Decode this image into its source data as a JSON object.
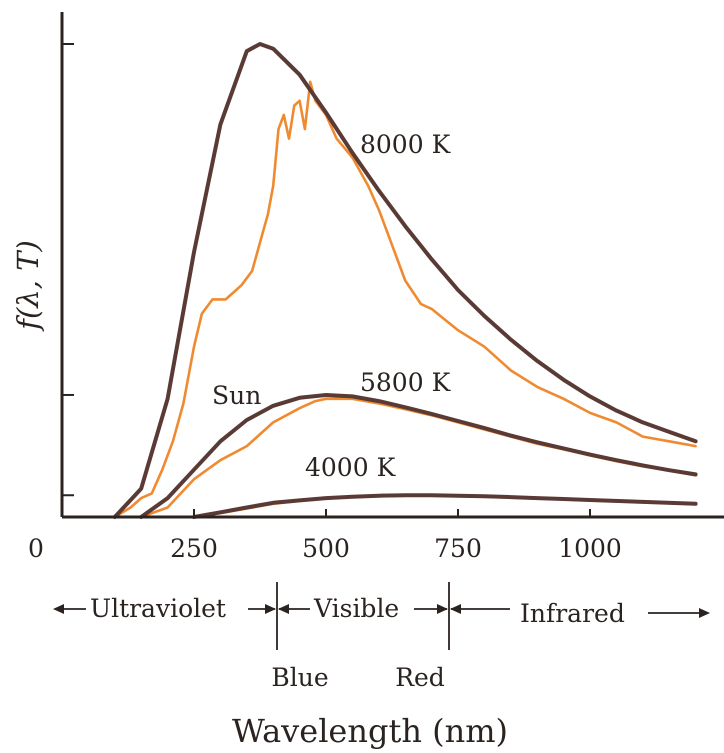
{
  "chart_data": {
    "type": "line",
    "title": "",
    "xlabel": "Wavelength (nm)",
    "ylabel": "f(λ, T)",
    "xlim": [
      0,
      1200
    ],
    "x_ticks": [
      0,
      250,
      500,
      750,
      1000
    ],
    "x_tick_labels": [
      "0",
      "250",
      "500",
      "750",
      "1000"
    ],
    "grid": false,
    "colors": {
      "blackbody": "#5a3a34",
      "sun": "#f08a30",
      "axis": "#2a2320"
    },
    "series": [
      {
        "name": "8000 K",
        "kind": "blackbody",
        "values": [
          [
            100,
            0.0
          ],
          [
            150,
            0.06
          ],
          [
            200,
            0.25
          ],
          [
            250,
            0.56
          ],
          [
            300,
            0.83
          ],
          [
            350,
            0.985
          ],
          [
            375,
            1.0
          ],
          [
            400,
            0.99
          ],
          [
            450,
            0.935
          ],
          [
            500,
            0.855
          ],
          [
            550,
            0.77
          ],
          [
            600,
            0.69
          ],
          [
            650,
            0.615
          ],
          [
            700,
            0.545
          ],
          [
            750,
            0.48
          ],
          [
            800,
            0.425
          ],
          [
            850,
            0.375
          ],
          [
            900,
            0.33
          ],
          [
            950,
            0.29
          ],
          [
            1000,
            0.255
          ],
          [
            1050,
            0.225
          ],
          [
            1100,
            0.2
          ],
          [
            1150,
            0.18
          ],
          [
            1200,
            0.16
          ]
        ]
      },
      {
        "name": "5800 K",
        "kind": "blackbody",
        "values": [
          [
            150,
            0.0
          ],
          [
            200,
            0.04
          ],
          [
            250,
            0.1
          ],
          [
            300,
            0.16
          ],
          [
            350,
            0.205
          ],
          [
            400,
            0.235
          ],
          [
            450,
            0.252
          ],
          [
            500,
            0.258
          ],
          [
            550,
            0.255
          ],
          [
            600,
            0.245
          ],
          [
            650,
            0.232
          ],
          [
            700,
            0.218
          ],
          [
            750,
            0.203
          ],
          [
            800,
            0.188
          ],
          [
            850,
            0.172
          ],
          [
            900,
            0.158
          ],
          [
            950,
            0.145
          ],
          [
            1000,
            0.132
          ],
          [
            1050,
            0.12
          ],
          [
            1100,
            0.109
          ],
          [
            1150,
            0.099
          ],
          [
            1200,
            0.09
          ]
        ]
      },
      {
        "name": "4000 K",
        "kind": "blackbody",
        "values": [
          [
            250,
            0.0
          ],
          [
            300,
            0.01
          ],
          [
            350,
            0.02
          ],
          [
            400,
            0.03
          ],
          [
            450,
            0.035
          ],
          [
            500,
            0.04
          ],
          [
            550,
            0.043
          ],
          [
            600,
            0.045
          ],
          [
            650,
            0.046
          ],
          [
            700,
            0.046
          ],
          [
            750,
            0.045
          ],
          [
            800,
            0.044
          ],
          [
            850,
            0.042
          ],
          [
            900,
            0.04
          ],
          [
            950,
            0.038
          ],
          [
            1000,
            0.036
          ],
          [
            1100,
            0.032
          ],
          [
            1200,
            0.028
          ]
        ]
      },
      {
        "name": "Sun",
        "kind": "measured",
        "values": [
          [
            100,
            0.0
          ],
          [
            130,
            0.02
          ],
          [
            150,
            0.04
          ],
          [
            170,
            0.05
          ],
          [
            190,
            0.1
          ],
          [
            210,
            0.16
          ],
          [
            230,
            0.24
          ],
          [
            250,
            0.36
          ],
          [
            265,
            0.43
          ],
          [
            285,
            0.46
          ],
          [
            310,
            0.46
          ],
          [
            340,
            0.49
          ],
          [
            360,
            0.52
          ],
          [
            380,
            0.6
          ],
          [
            390,
            0.64
          ],
          [
            400,
            0.7
          ],
          [
            410,
            0.82
          ],
          [
            420,
            0.85
          ],
          [
            430,
            0.8
          ],
          [
            440,
            0.87
          ],
          [
            450,
            0.88
          ],
          [
            460,
            0.82
          ],
          [
            470,
            0.92
          ],
          [
            480,
            0.88
          ],
          [
            500,
            0.85
          ],
          [
            520,
            0.8
          ],
          [
            550,
            0.76
          ],
          [
            580,
            0.7
          ],
          [
            600,
            0.65
          ],
          [
            620,
            0.59
          ],
          [
            650,
            0.5
          ],
          [
            680,
            0.45
          ],
          [
            700,
            0.44
          ],
          [
            750,
            0.395
          ],
          [
            800,
            0.36
          ],
          [
            850,
            0.31
          ],
          [
            900,
            0.275
          ],
          [
            950,
            0.25
          ],
          [
            1000,
            0.22
          ],
          [
            1050,
            0.2
          ],
          [
            1100,
            0.17
          ],
          [
            1150,
            0.16
          ],
          [
            1200,
            0.15
          ]
        ]
      },
      {
        "name": "Sun",
        "kind": "measured",
        "values": [
          [
            150,
            0.0
          ],
          [
            200,
            0.02
          ],
          [
            250,
            0.08
          ],
          [
            300,
            0.12
          ],
          [
            350,
            0.15
          ],
          [
            400,
            0.2
          ],
          [
            450,
            0.23
          ],
          [
            480,
            0.245
          ],
          [
            500,
            0.25
          ],
          [
            550,
            0.25
          ],
          [
            600,
            0.24
          ],
          [
            650,
            0.228
          ],
          [
            700,
            0.215
          ],
          [
            750,
            0.2
          ],
          [
            800,
            0.185
          ],
          [
            850,
            0.17
          ],
          [
            900,
            0.155
          ],
          [
            950,
            0.143
          ],
          [
            1000,
            0.13
          ],
          [
            1050,
            0.118
          ],
          [
            1100,
            0.107
          ],
          [
            1150,
            0.098
          ],
          [
            1200,
            0.088
          ]
        ]
      },
      {
        "name": "Sun",
        "kind": "measured",
        "values": [
          [
            250,
            0.0
          ],
          [
            300,
            0.008
          ],
          [
            350,
            0.018
          ],
          [
            400,
            0.028
          ],
          [
            450,
            0.034
          ],
          [
            500,
            0.039
          ],
          [
            550,
            0.042
          ],
          [
            600,
            0.044
          ],
          [
            650,
            0.045
          ],
          [
            700,
            0.045
          ],
          [
            750,
            0.044
          ],
          [
            800,
            0.043
          ],
          [
            850,
            0.041
          ],
          [
            900,
            0.039
          ],
          [
            950,
            0.037
          ],
          [
            1000,
            0.035
          ],
          [
            1100,
            0.031
          ],
          [
            1200,
            0.027
          ]
        ]
      }
    ],
    "annotations": {
      "curve_labels": [
        {
          "text": "8000 K"
        },
        {
          "text": "5800 K"
        },
        {
          "text": "4000 K"
        },
        {
          "text": "Sun"
        }
      ],
      "regions": {
        "ultraviolet": "Ultraviolet",
        "visible": "Visible",
        "infrared": "Infrared"
      },
      "visible_bounds": [
        {
          "label": "Blue",
          "x": 400
        },
        {
          "label": "Red",
          "x": 700
        }
      ]
    }
  }
}
